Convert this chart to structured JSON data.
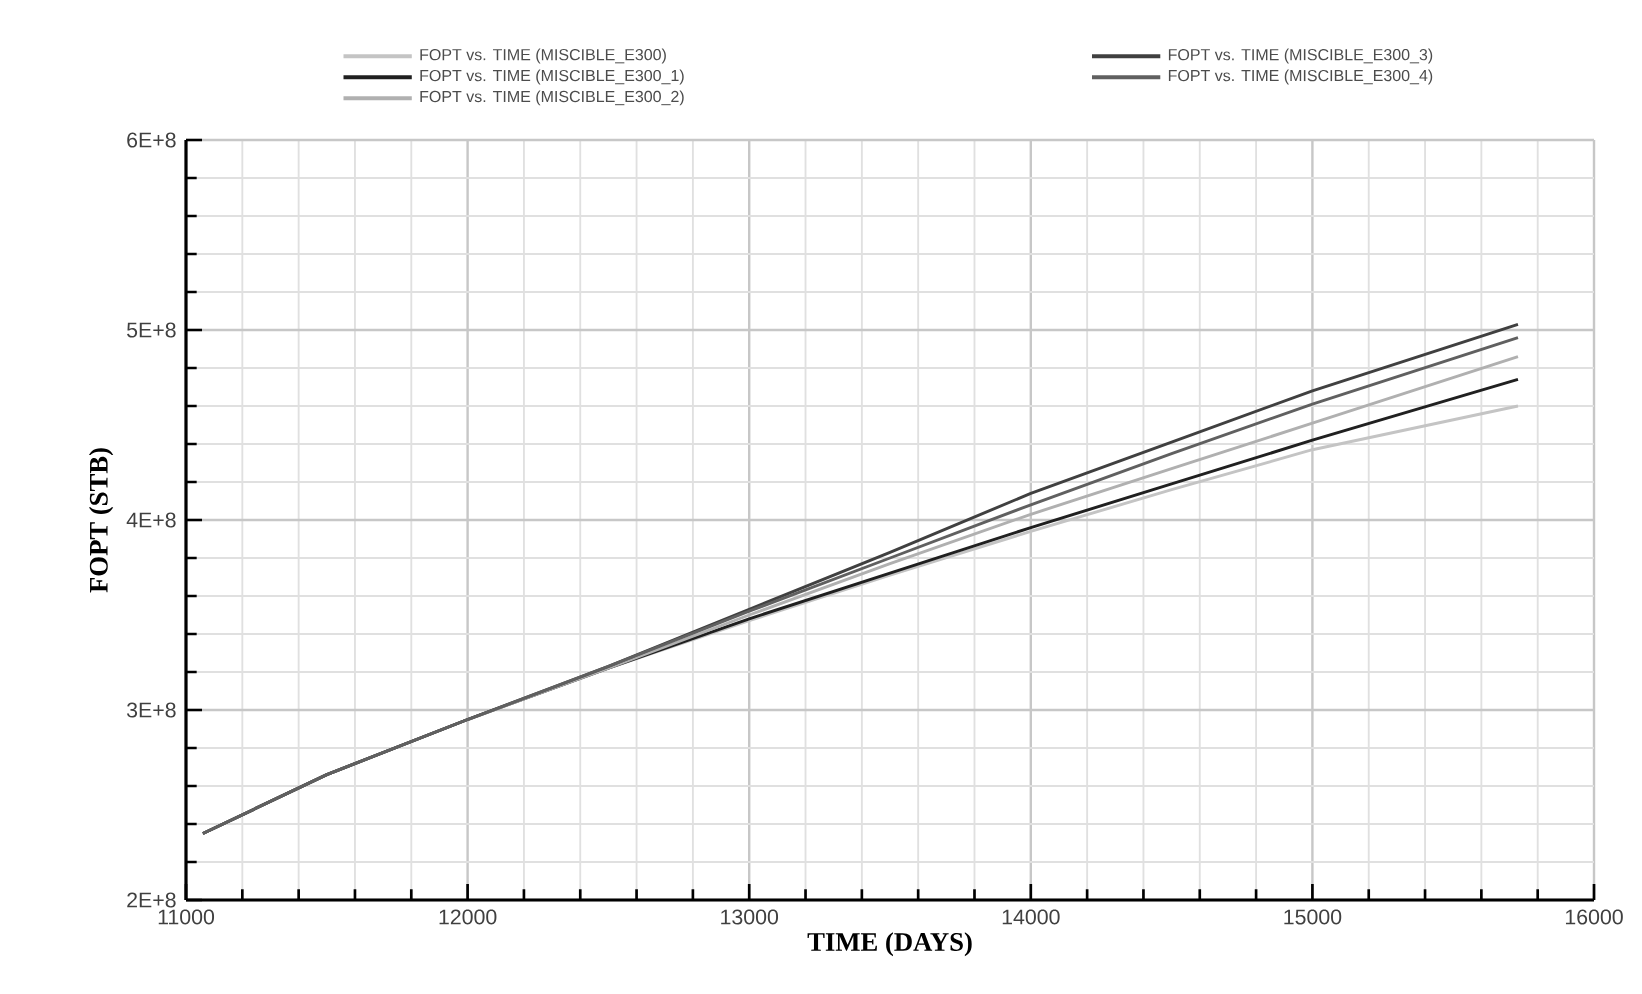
{
  "chart_data": {
    "type": "line",
    "xlabel": "TIME (DAYS)",
    "ylabel": "FOPT (STB)",
    "x": [
      11060,
      11500,
      12000,
      12500,
      13000,
      13500,
      14000,
      14500,
      15000,
      15730
    ],
    "series": [
      {
        "name": "FOPT vs. TIME (MISCIBLE_E300)",
        "color": "#c4c4c4",
        "values": [
          235000000,
          266000000,
          295000000,
          322000000,
          347000000,
          371000000,
          394000000,
          416000000,
          437000000,
          460000000
        ]
      },
      {
        "name": "FOPT vs. TIME (MISCIBLE_E300_1)",
        "color": "#202020",
        "values": [
          235000000,
          266000000,
          295000000,
          322000000,
          348000000,
          372000000,
          396000000,
          419000000,
          442000000,
          474000000
        ]
      },
      {
        "name": "FOPT vs. TIME (MISCIBLE_E300_2)",
        "color": "#b0b0b0",
        "values": [
          235000000,
          266000000,
          295000000,
          322000000,
          350000000,
          377000000,
          403000000,
          427000000,
          451000000,
          486000000
        ]
      },
      {
        "name": "FOPT vs. TIME (MISCIBLE_E300_3)",
        "color": "#404040",
        "values": [
          235000000,
          266000000,
          295000000,
          323000000,
          353000000,
          383000000,
          414000000,
          441000000,
          468000000,
          503000000
        ]
      },
      {
        "name": "FOPT vs. TIME (MISCIBLE_E300_4)",
        "color": "#606060",
        "values": [
          235000000,
          266000000,
          295000000,
          323000000,
          352000000,
          380000000,
          408000000,
          435000000,
          461000000,
          496000000
        ]
      }
    ],
    "xlim": [
      11000,
      16000
    ],
    "xticks": [
      11000,
      12000,
      13000,
      14000,
      15000,
      16000
    ],
    "ylim": [
      200000000,
      600000000
    ],
    "yticks": [
      {
        "value": 200000000,
        "label": "2E+8"
      },
      {
        "value": 300000000,
        "label": "3E+8"
      },
      {
        "value": 400000000,
        "label": "4E+8"
      },
      {
        "value": 500000000,
        "label": "5E+8"
      },
      {
        "value": 600000000,
        "label": "6E+8"
      }
    ],
    "grid": true,
    "legend": "top",
    "line_style": "solid"
  }
}
